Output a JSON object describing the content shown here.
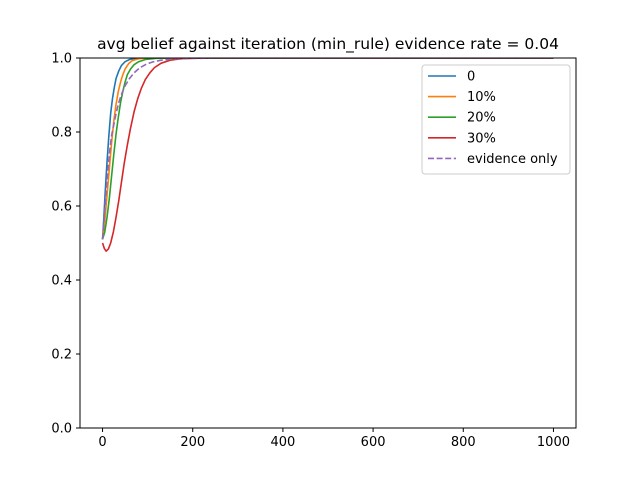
{
  "chart_data": {
    "type": "line",
    "title": "avg belief against iteration (min_rule) evidence rate = 0.04",
    "xlabel": "",
    "ylabel": "",
    "xlim": [
      -50,
      1050
    ],
    "ylim": [
      0,
      1
    ],
    "x_ticks": [
      0,
      200,
      400,
      600,
      800,
      1000
    ],
    "y_ticks": [
      0.0,
      0.2,
      0.4,
      0.6,
      0.8,
      1.0
    ],
    "x_tick_labels": [
      "0",
      "200",
      "400",
      "600",
      "800",
      "1000"
    ],
    "y_tick_labels": [
      "0.0",
      "0.2",
      "0.4",
      "0.6",
      "0.8",
      "1.0"
    ],
    "grid": false,
    "legend_position": "top-right",
    "series": [
      {
        "name": "0",
        "color": "#1f77b4",
        "dash": "solid",
        "points": [
          [
            0,
            0.51
          ],
          [
            3,
            0.57
          ],
          [
            6,
            0.64
          ],
          [
            10,
            0.72
          ],
          [
            14,
            0.79
          ],
          [
            18,
            0.85
          ],
          [
            22,
            0.89
          ],
          [
            26,
            0.92
          ],
          [
            30,
            0.945
          ],
          [
            36,
            0.965
          ],
          [
            42,
            0.98
          ],
          [
            50,
            0.99
          ],
          [
            60,
            0.996
          ],
          [
            75,
            0.999
          ],
          [
            90,
            1.0
          ],
          [
            1000,
            1.0
          ]
        ]
      },
      {
        "name": "10%",
        "color": "#ff7f0e",
        "dash": "solid",
        "points": [
          [
            0,
            0.51
          ],
          [
            5,
            0.56
          ],
          [
            10,
            0.63
          ],
          [
            15,
            0.7
          ],
          [
            20,
            0.77
          ],
          [
            25,
            0.83
          ],
          [
            30,
            0.875
          ],
          [
            35,
            0.91
          ],
          [
            40,
            0.935
          ],
          [
            45,
            0.955
          ],
          [
            50,
            0.97
          ],
          [
            58,
            0.985
          ],
          [
            66,
            0.993
          ],
          [
            80,
            0.998
          ],
          [
            100,
            1.0
          ],
          [
            1000,
            1.0
          ]
        ]
      },
      {
        "name": "20%",
        "color": "#2ca02c",
        "dash": "solid",
        "points": [
          [
            0,
            0.51
          ],
          [
            5,
            0.53
          ],
          [
            10,
            0.57
          ],
          [
            15,
            0.62
          ],
          [
            20,
            0.68
          ],
          [
            25,
            0.74
          ],
          [
            30,
            0.795
          ],
          [
            35,
            0.84
          ],
          [
            40,
            0.88
          ],
          [
            45,
            0.91
          ],
          [
            50,
            0.935
          ],
          [
            55,
            0.955
          ],
          [
            62,
            0.97
          ],
          [
            70,
            0.982
          ],
          [
            80,
            0.99
          ],
          [
            95,
            0.996
          ],
          [
            120,
            0.999
          ],
          [
            150,
            1.0
          ],
          [
            1000,
            1.0
          ]
        ]
      },
      {
        "name": "30%",
        "color": "#d62728",
        "dash": "solid",
        "points": [
          [
            0,
            0.5
          ],
          [
            4,
            0.485
          ],
          [
            8,
            0.478
          ],
          [
            13,
            0.484
          ],
          [
            18,
            0.5
          ],
          [
            24,
            0.53
          ],
          [
            30,
            0.57
          ],
          [
            36,
            0.615
          ],
          [
            42,
            0.665
          ],
          [
            48,
            0.715
          ],
          [
            55,
            0.765
          ],
          [
            62,
            0.81
          ],
          [
            70,
            0.855
          ],
          [
            78,
            0.89
          ],
          [
            86,
            0.918
          ],
          [
            95,
            0.942
          ],
          [
            105,
            0.96
          ],
          [
            115,
            0.974
          ],
          [
            130,
            0.986
          ],
          [
            150,
            0.994
          ],
          [
            175,
            0.998
          ],
          [
            200,
            0.999
          ],
          [
            240,
            1.0
          ],
          [
            1000,
            1.0
          ]
        ]
      },
      {
        "name": "evidence only",
        "color": "#9467bd",
        "dash": "dashed",
        "points": [
          [
            0,
            0.51
          ],
          [
            4,
            0.57
          ],
          [
            8,
            0.64
          ],
          [
            12,
            0.7
          ],
          [
            16,
            0.75
          ],
          [
            20,
            0.79
          ],
          [
            25,
            0.82
          ],
          [
            30,
            0.85
          ],
          [
            36,
            0.88
          ],
          [
            43,
            0.905
          ],
          [
            50,
            0.925
          ],
          [
            60,
            0.945
          ],
          [
            70,
            0.96
          ],
          [
            82,
            0.973
          ],
          [
            95,
            0.982
          ],
          [
            110,
            0.989
          ],
          [
            130,
            0.994
          ],
          [
            160,
            0.998
          ],
          [
            200,
            0.999
          ],
          [
            260,
            1.0
          ],
          [
            1000,
            1.0
          ]
        ]
      }
    ]
  }
}
